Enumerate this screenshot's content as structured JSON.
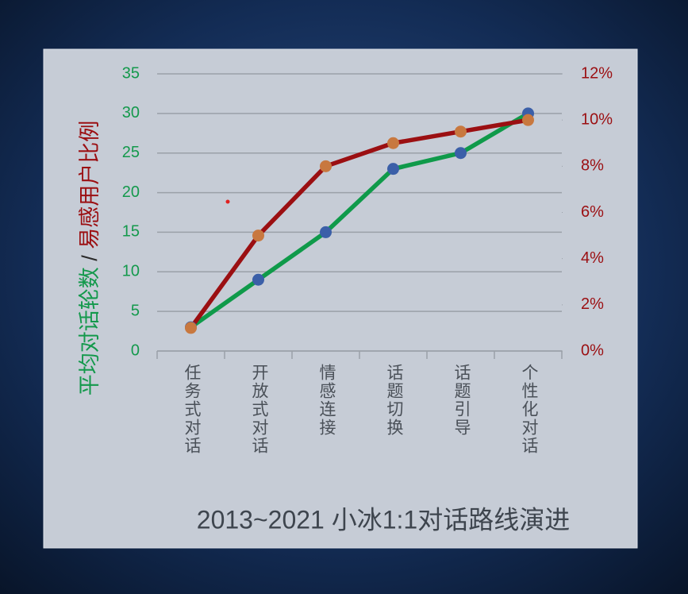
{
  "chart_data": {
    "type": "line",
    "title": "2013~2021 小冰1:1对话路线演进",
    "axis_title": [
      "平均对话轮数",
      "/",
      "易感用户比例"
    ],
    "categories": [
      "任务式对话",
      "开放式对话",
      "情感连接",
      "话题切换",
      "话题引导",
      "个性化对话"
    ],
    "series": [
      {
        "name": "平均对话轮数",
        "color": "#0f9a4a",
        "marker_color": "#3b5fa8",
        "values": [
          3,
          9,
          15,
          23,
          25,
          30
        ]
      },
      {
        "name": "易感用户比例",
        "color": "#9b0f12",
        "marker_color": "#c8783f",
        "axis": "y2",
        "values": [
          1,
          5,
          8,
          9,
          9.5,
          10
        ]
      }
    ],
    "ylim": [
      0,
      35
    ],
    "yticks": [
      0,
      5,
      10,
      15,
      20,
      25,
      30,
      35
    ],
    "y2lim": [
      0,
      12
    ],
    "y2ticks": [
      {
        "value": 0,
        "label": "0%"
      },
      {
        "value": 2,
        "label": "2%"
      },
      {
        "value": 4,
        "label": "4%"
      },
      {
        "value": 6,
        "label": "6%"
      },
      {
        "value": 8,
        "label": "8%"
      },
      {
        "value": 10,
        "label": "10%"
      },
      {
        "value": 12,
        "label": "12%"
      }
    ],
    "grid": true
  }
}
